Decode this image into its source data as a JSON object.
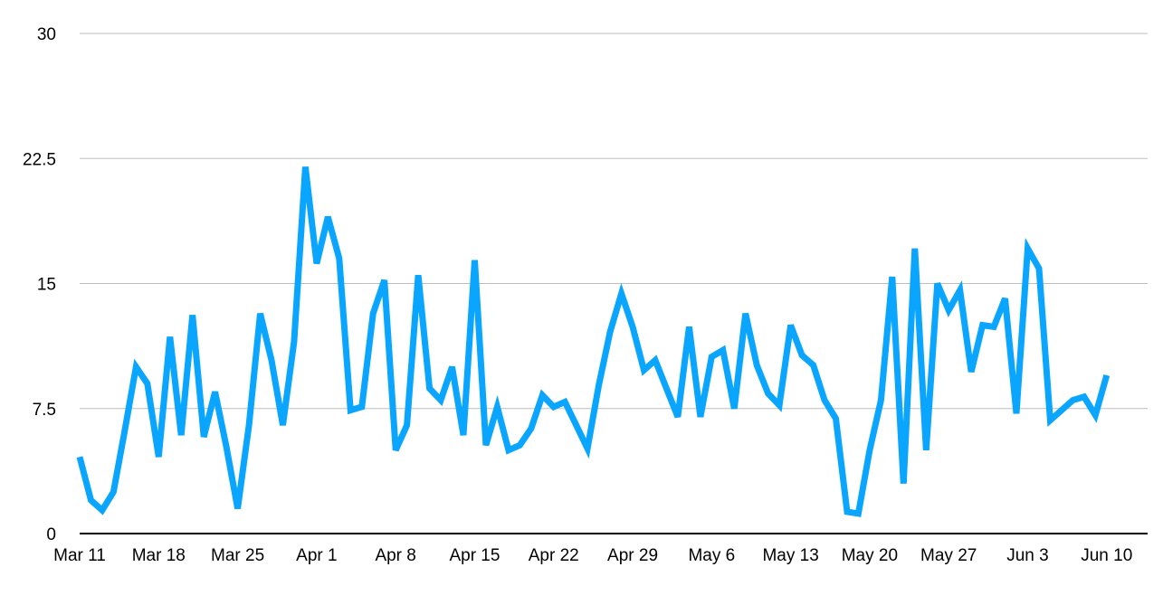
{
  "chart_data": {
    "type": "line",
    "title": "",
    "xlabel": "",
    "ylabel": "",
    "ylim": [
      0,
      30
    ],
    "y_ticks": [
      0,
      7.5,
      15,
      22.5,
      30
    ],
    "y_tick_labels": [
      "0",
      "7.5",
      "15",
      "22.5",
      "30"
    ],
    "x_tick_labels": [
      "Mar 11",
      "Mar 18",
      "Mar 25",
      "Apr 1",
      "Apr 8",
      "Apr 15",
      "Apr 22",
      "Apr 29",
      "May 6",
      "May 13",
      "May 20",
      "May 27",
      "Jun 3",
      "Jun 10"
    ],
    "x": [
      "2024-03-11",
      "2024-03-12",
      "2024-03-13",
      "2024-03-14",
      "2024-03-15",
      "2024-03-16",
      "2024-03-17",
      "2024-03-18",
      "2024-03-19",
      "2024-03-20",
      "2024-03-21",
      "2024-03-22",
      "2024-03-23",
      "2024-03-24",
      "2024-03-25",
      "2024-03-26",
      "2024-03-27",
      "2024-03-28",
      "2024-03-29",
      "2024-03-30",
      "2024-03-31",
      "2024-04-01",
      "2024-04-02",
      "2024-04-03",
      "2024-04-04",
      "2024-04-05",
      "2024-04-06",
      "2024-04-07",
      "2024-04-08",
      "2024-04-09",
      "2024-04-10",
      "2024-04-11",
      "2024-04-12",
      "2024-04-13",
      "2024-04-14",
      "2024-04-15",
      "2024-04-16",
      "2024-04-17",
      "2024-04-18",
      "2024-04-19",
      "2024-04-20",
      "2024-04-21",
      "2024-04-22",
      "2024-04-23",
      "2024-04-24",
      "2024-04-25",
      "2024-04-26",
      "2024-04-27",
      "2024-04-28",
      "2024-04-29",
      "2024-04-30",
      "2024-05-01",
      "2024-05-02",
      "2024-05-03",
      "2024-05-04",
      "2024-05-05",
      "2024-05-06",
      "2024-05-07",
      "2024-05-08",
      "2024-05-09",
      "2024-05-10",
      "2024-05-11",
      "2024-05-12",
      "2024-05-13",
      "2024-05-14",
      "2024-05-15",
      "2024-05-16",
      "2024-05-17",
      "2024-05-18",
      "2024-05-19",
      "2024-05-20",
      "2024-05-21",
      "2024-05-22",
      "2024-05-23",
      "2024-05-24",
      "2024-05-25",
      "2024-05-26",
      "2024-05-27",
      "2024-05-28",
      "2024-05-29",
      "2024-05-30",
      "2024-05-31",
      "2024-06-01",
      "2024-06-02",
      "2024-06-03",
      "2024-06-04",
      "2024-06-05",
      "2024-06-06",
      "2024-06-07",
      "2024-06-08",
      "2024-06-09",
      "2024-06-10",
      "2024-06-11"
    ],
    "series": [
      {
        "color": "#0aa5ff",
        "values": [
          4.6,
          2.0,
          1.4,
          2.5,
          6.2,
          10.0,
          9.0,
          4.6,
          11.8,
          5.9,
          13.1,
          5.8,
          8.5,
          5.2,
          1.5,
          6.5,
          13.2,
          10.4,
          6.5,
          11.5,
          22.0,
          16.2,
          19.0,
          16.5,
          7.4,
          7.6,
          13.2,
          15.2,
          5.0,
          6.5,
          15.5,
          8.7,
          8.0,
          10.0,
          5.9,
          16.4,
          5.3,
          7.6,
          5.0,
          5.3,
          6.3,
          8.3,
          7.6,
          7.9,
          6.5,
          5.1,
          8.9,
          12.1,
          14.4,
          12.4,
          9.8,
          10.4,
          8.7,
          7.0,
          12.4,
          7.0,
          10.6,
          11.0,
          7.5,
          13.2,
          10.1,
          8.4,
          7.7,
          12.5,
          10.7,
          10.1,
          8.0,
          6.9,
          1.3,
          1.2,
          5.0,
          8.0,
          15.4,
          3.0,
          17.1,
          5.0,
          15.0,
          13.4,
          14.6,
          9.7,
          12.5,
          12.4,
          14.1,
          7.2,
          17.1,
          15.9,
          6.8,
          7.4,
          8.0,
          8.2,
          7.1,
          9.5,
          null
        ]
      }
    ]
  }
}
